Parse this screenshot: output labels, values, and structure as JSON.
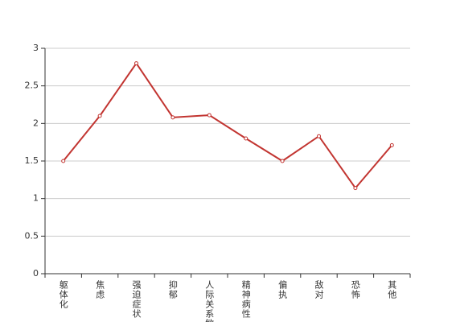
{
  "chart_data": {
    "type": "line",
    "categories": [
      "躯体化",
      "焦虑",
      "强迫症状",
      "抑郁",
      "人际关系敏感",
      "精神病性",
      "偏执",
      "敌对",
      "恐怖",
      "其他"
    ],
    "series": [
      {
        "color": "#c23531",
        "values": [
          1.5,
          2.1,
          2.8,
          2.08,
          2.11,
          1.8,
          1.5,
          1.83,
          1.14,
          1.71
        ]
      }
    ],
    "ylim": [
      0,
      3
    ],
    "yticks": [
      0,
      0.5,
      1,
      1.5,
      2,
      2.5,
      3
    ],
    "grid": true
  }
}
